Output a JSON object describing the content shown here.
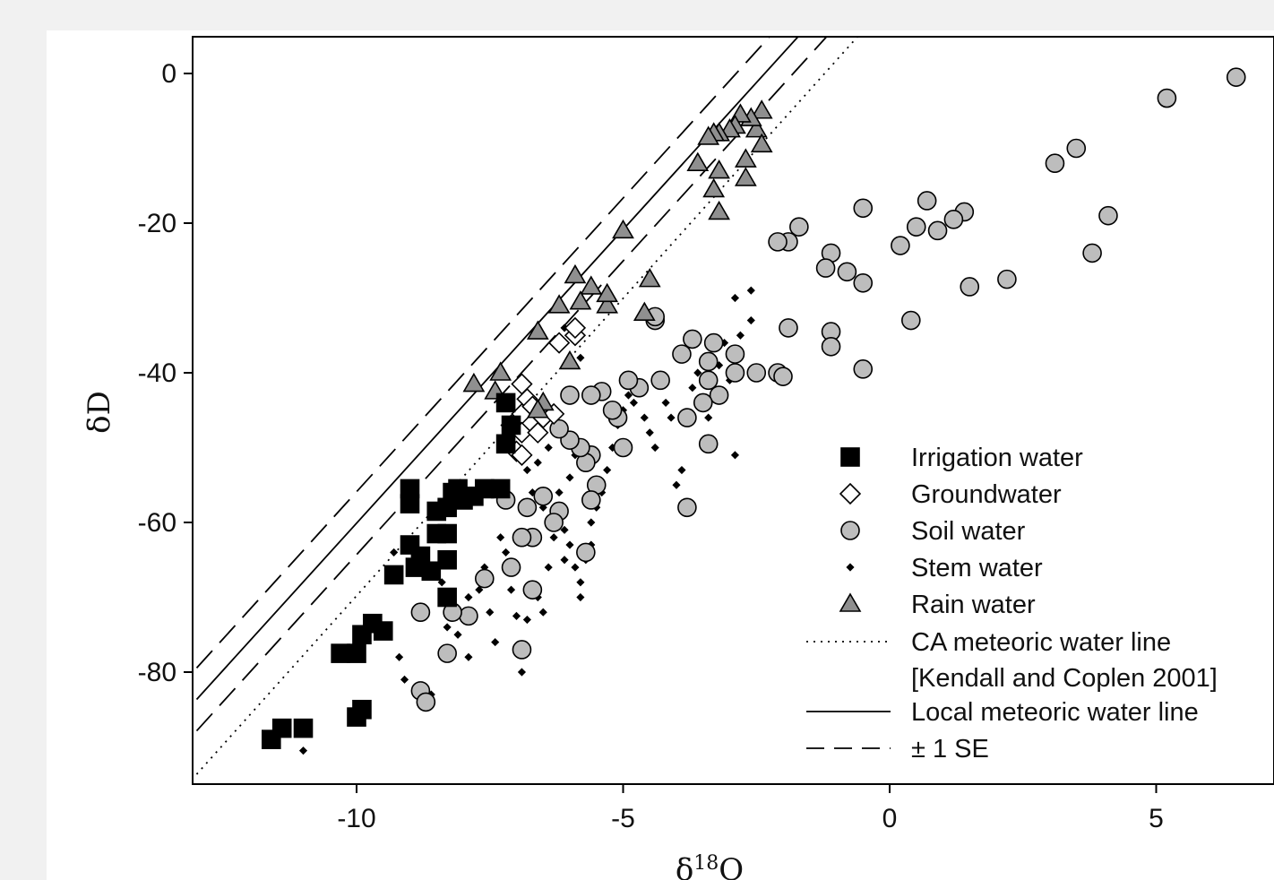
{
  "chart_data": {
    "type": "scatter",
    "xlabel": "δ18O",
    "ylabel": "δD",
    "xlim": [
      -13,
      7
    ],
    "ylim": [
      -95,
      5
    ],
    "x_ticks": [
      -10,
      -5,
      0,
      5
    ],
    "y_ticks": [
      0,
      -20,
      -40,
      -60,
      -80
    ],
    "grid": false,
    "legend_position": "bottom-right",
    "series": [
      {
        "name": "Irrigation water",
        "marker": "square",
        "color": "#000000",
        "points": [
          [
            -11.6,
            -89
          ],
          [
            -11.4,
            -87.5
          ],
          [
            -11,
            -87.5
          ],
          [
            -10.3,
            -77.5
          ],
          [
            -10,
            -77.5
          ],
          [
            -9.9,
            -75
          ],
          [
            -9.7,
            -73.5
          ],
          [
            -9.5,
            -74.5
          ],
          [
            -10,
            -86
          ],
          [
            -9.9,
            -85
          ],
          [
            -9.3,
            -67
          ],
          [
            -9,
            -63
          ],
          [
            -8.9,
            -66
          ],
          [
            -8.8,
            -64.5
          ],
          [
            -8.6,
            -66.5
          ],
          [
            -8.3,
            -65
          ],
          [
            -8.5,
            -61.5
          ],
          [
            -8.3,
            -61.5
          ],
          [
            -8.5,
            -58.5
          ],
          [
            -8.3,
            -58
          ],
          [
            -8.2,
            -56
          ],
          [
            -8.1,
            -55.5
          ],
          [
            -8,
            -57
          ],
          [
            -7.8,
            -56.5
          ],
          [
            -7.6,
            -55.5
          ],
          [
            -7.3,
            -55.5
          ],
          [
            -7.2,
            -44
          ],
          [
            -7.1,
            -47
          ],
          [
            -7.2,
            -49.5
          ],
          [
            -9,
            -55.5
          ],
          [
            -9,
            -57.5
          ],
          [
            -8.3,
            -70
          ]
        ]
      },
      {
        "name": "Groundwater",
        "marker": "diamond",
        "color": "#ffffff",
        "points": [
          [
            -6.9,
            -41.5
          ],
          [
            -6.8,
            -43.5
          ],
          [
            -6.9,
            -45.5
          ],
          [
            -6.7,
            -44.5
          ],
          [
            -6.5,
            -46
          ],
          [
            -6.3,
            -45.5
          ],
          [
            -7.1,
            -47
          ],
          [
            -6.9,
            -48
          ],
          [
            -7,
            -50.5
          ],
          [
            -6.9,
            -51
          ],
          [
            -6.6,
            -48
          ],
          [
            -6.2,
            -36
          ],
          [
            -5.9,
            -35
          ],
          [
            -5.9,
            -34
          ]
        ]
      },
      {
        "name": "Soil water",
        "marker": "circle",
        "color": "#bdbdbd",
        "points": [
          [
            6.5,
            -0.5
          ],
          [
            5.2,
            -3.3
          ],
          [
            3.5,
            -10
          ],
          [
            3.1,
            -12
          ],
          [
            4.1,
            -19
          ],
          [
            3.8,
            -24
          ],
          [
            2.2,
            -27.5
          ],
          [
            1.5,
            -28.5
          ],
          [
            1.4,
            -18.5
          ],
          [
            1.2,
            -19.5
          ],
          [
            0.9,
            -21
          ],
          [
            0.7,
            -17
          ],
          [
            0.5,
            -20.5
          ],
          [
            0.2,
            -23
          ],
          [
            0.4,
            -33
          ],
          [
            -0.5,
            -18
          ],
          [
            -0.5,
            -28
          ],
          [
            -0.5,
            -39.5
          ],
          [
            -0.8,
            -26.5
          ],
          [
            -1.1,
            -24
          ],
          [
            -1.2,
            -26
          ],
          [
            -1.1,
            -34.5
          ],
          [
            -1.1,
            -36.5
          ],
          [
            -1.7,
            -20.5
          ],
          [
            -1.9,
            -22.5
          ],
          [
            -2.1,
            -22.5
          ],
          [
            -1.9,
            -34
          ],
          [
            -2.1,
            -40
          ],
          [
            -2,
            -40.5
          ],
          [
            -2.5,
            -40
          ],
          [
            -2.9,
            -40
          ],
          [
            -2.9,
            -37.5
          ],
          [
            -3.2,
            -43
          ],
          [
            -3.4,
            -41
          ],
          [
            -3.3,
            -36
          ],
          [
            -3.4,
            -38.5
          ],
          [
            -3.5,
            -44
          ],
          [
            -3.4,
            -49.5
          ],
          [
            -3.7,
            -35.5
          ],
          [
            -3.9,
            -37.5
          ],
          [
            -3.8,
            -46
          ],
          [
            -4.3,
            -41
          ],
          [
            -4.4,
            -33
          ],
          [
            -4.4,
            -32.5
          ],
          [
            -4.7,
            -42
          ],
          [
            -4.9,
            -41
          ],
          [
            -5,
            -50
          ],
          [
            -5.1,
            -46
          ],
          [
            -5.2,
            -45
          ],
          [
            -5.4,
            -42.5
          ],
          [
            -5.6,
            -43
          ],
          [
            -5.6,
            -51
          ],
          [
            -5.7,
            -52
          ],
          [
            -5.5,
            -55
          ],
          [
            -5.6,
            -57
          ],
          [
            -5.7,
            -64
          ],
          [
            -5.8,
            -50
          ],
          [
            -6,
            -49
          ],
          [
            -6.2,
            -47.5
          ],
          [
            -6,
            -43
          ],
          [
            -6.2,
            -58.5
          ],
          [
            -6.3,
            -60
          ],
          [
            -6.5,
            -56.5
          ],
          [
            -6.7,
            -62
          ],
          [
            -6.8,
            -58
          ],
          [
            -6.7,
            -69
          ],
          [
            -6.9,
            -77
          ],
          [
            -6.9,
            -62
          ],
          [
            -7.1,
            -66
          ],
          [
            -7.2,
            -57
          ],
          [
            -7.6,
            -67.5
          ],
          [
            -7.9,
            -72.5
          ],
          [
            -8.2,
            -72
          ],
          [
            -8.3,
            -77.5
          ],
          [
            -8.8,
            -72
          ],
          [
            -8.8,
            -82.5
          ],
          [
            -8.7,
            -84
          ],
          [
            -3.8,
            -58
          ]
        ]
      },
      {
        "name": "Stem water",
        "marker": "dot",
        "color": "#000000",
        "points": [
          [
            -11,
            -90.5
          ],
          [
            -9.3,
            -64
          ],
          [
            -9.2,
            -78
          ],
          [
            -9.1,
            -81
          ],
          [
            -8.8,
            -83.5
          ],
          [
            -8.6,
            -83
          ],
          [
            -8.1,
            -75
          ],
          [
            -7.9,
            -70
          ],
          [
            -7.7,
            -69
          ],
          [
            -7.5,
            -72
          ],
          [
            -7.4,
            -76
          ],
          [
            -7.2,
            -64
          ],
          [
            -7.1,
            -69
          ],
          [
            -7,
            -72.5
          ],
          [
            -6.9,
            -80
          ],
          [
            -6.8,
            -73
          ],
          [
            -6.6,
            -70
          ],
          [
            -6.5,
            -72
          ],
          [
            -6.4,
            -66
          ],
          [
            -6.3,
            -62
          ],
          [
            -6.1,
            -65
          ],
          [
            -6.1,
            -61
          ],
          [
            -6,
            -63
          ],
          [
            -5.9,
            -66
          ],
          [
            -5.8,
            -70
          ],
          [
            -5.8,
            -68
          ],
          [
            -5.7,
            -65
          ],
          [
            -5.6,
            -63
          ],
          [
            -5.6,
            -60
          ],
          [
            -5.5,
            -58
          ],
          [
            -5.4,
            -56
          ],
          [
            -5.3,
            -53
          ],
          [
            -5.2,
            -50
          ],
          [
            -5.1,
            -47
          ],
          [
            -5,
            -45
          ],
          [
            -4.9,
            -43
          ],
          [
            -4.8,
            -44
          ],
          [
            -4.7,
            -42
          ],
          [
            -4.6,
            -46
          ],
          [
            -4.5,
            -48
          ],
          [
            -4.4,
            -50
          ],
          [
            -4.3,
            -41
          ],
          [
            -4.2,
            -44
          ],
          [
            -4.1,
            -46
          ],
          [
            -4,
            -55
          ],
          [
            -3.9,
            -53
          ],
          [
            -3.8,
            -58
          ],
          [
            -3.7,
            -42
          ],
          [
            -3.6,
            -40
          ],
          [
            -3.5,
            -44
          ],
          [
            -3.4,
            -46
          ],
          [
            -3.3,
            -43
          ],
          [
            -3.2,
            -39
          ],
          [
            -3.1,
            -36
          ],
          [
            -3,
            -41
          ],
          [
            -2.9,
            -51
          ],
          [
            -2.8,
            -35
          ],
          [
            -2.6,
            -33
          ],
          [
            -2.6,
            -29
          ],
          [
            -2.9,
            -30
          ],
          [
            -6.6,
            -52
          ],
          [
            -6.4,
            -50
          ],
          [
            -6.2,
            -56
          ],
          [
            -6,
            -54
          ],
          [
            -5.9,
            -51
          ],
          [
            -6.7,
            -56
          ],
          [
            -6.8,
            -53
          ],
          [
            -6.5,
            -58
          ],
          [
            -7.3,
            -62
          ],
          [
            -7.5,
            -68
          ],
          [
            -7.6,
            -66
          ],
          [
            -8.4,
            -68
          ],
          [
            -8.3,
            -74
          ],
          [
            -7.9,
            -78
          ],
          [
            -6.1,
            -34
          ],
          [
            -5.8,
            -38
          ]
        ]
      },
      {
        "name": "Rain water",
        "marker": "triangle",
        "color": "#8f8f8f",
        "points": [
          [
            -2.4,
            -5
          ],
          [
            -2.5,
            -7.5
          ],
          [
            -2.4,
            -9.5
          ],
          [
            -2.6,
            -6
          ],
          [
            -2.8,
            -5.5
          ],
          [
            -2.9,
            -7
          ],
          [
            -3,
            -7.5
          ],
          [
            -3.2,
            -8
          ],
          [
            -3.3,
            -8
          ],
          [
            -3.4,
            -8.5
          ],
          [
            -2.7,
            -11.5
          ],
          [
            -2.7,
            -14
          ],
          [
            -3.2,
            -13
          ],
          [
            -3.3,
            -15.5
          ],
          [
            -3.6,
            -12
          ],
          [
            -3.2,
            -18.5
          ],
          [
            -5,
            -21
          ],
          [
            -4.5,
            -27.5
          ],
          [
            -4.6,
            -32
          ],
          [
            -5.3,
            -31
          ],
          [
            -5.3,
            -29.5
          ],
          [
            -5.6,
            -28.5
          ],
          [
            -5.8,
            -30.5
          ],
          [
            -5.9,
            -27
          ],
          [
            -6.2,
            -31
          ],
          [
            -6,
            -38.5
          ],
          [
            -6.6,
            -34.5
          ],
          [
            -6.5,
            -44
          ],
          [
            -6.6,
            -45
          ],
          [
            -7.3,
            -40
          ],
          [
            -7.4,
            -42.5
          ],
          [
            -7.8,
            -41.5
          ]
        ]
      }
    ],
    "lines": [
      {
        "name": "CA meteoric water line [Kendall and Coplen 2001]",
        "style": "dotted",
        "slope": 7.95,
        "intercept": 9.7
      },
      {
        "name": "Local meteoric water line",
        "style": "solid",
        "slope": 7.85,
        "intercept": 18.4
      },
      {
        "name": "± 1 SE",
        "style": "dashed",
        "slope": 7.85,
        "intercept": 22.6
      },
      {
        "name": "± 1 SE",
        "style": "dashed",
        "slope": 7.85,
        "intercept": 14.2
      }
    ]
  },
  "legend": {
    "items": [
      {
        "label": "Irrigation water",
        "marker": "square"
      },
      {
        "label": "Groundwater",
        "marker": "diamond"
      },
      {
        "label": "Soil water",
        "marker": "circle"
      },
      {
        "label": "Stem water",
        "marker": "dot"
      },
      {
        "label": "Rain water",
        "marker": "triangle"
      },
      {
        "label": "CA meteoric water line",
        "label2": "[Kendall and Coplen 2001]",
        "marker": "dotted-line"
      },
      {
        "label": "Local meteoric water line",
        "marker": "solid-line"
      },
      {
        "label": "± 1 SE",
        "marker": "dashed-line"
      }
    ]
  }
}
